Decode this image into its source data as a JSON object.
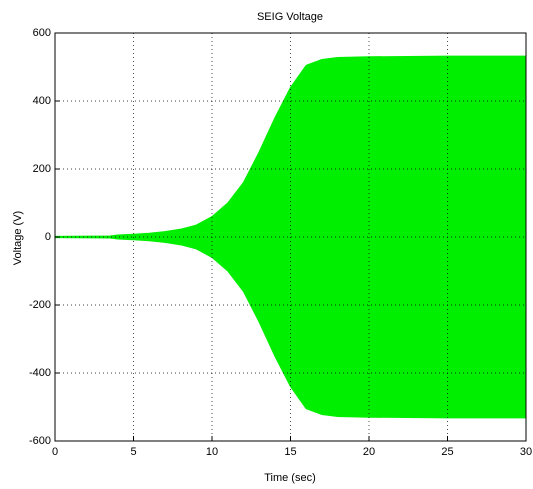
{
  "chart_data": {
    "type": "area",
    "title": "SEIG Voltage",
    "xlabel": "Time (sec)",
    "ylabel": "Voltage (V)",
    "x": [
      0,
      3.5,
      4,
      5,
      6,
      7,
      8,
      9,
      10,
      11,
      12,
      13,
      14,
      15,
      16,
      17,
      18,
      20,
      25,
      30
    ],
    "series": [
      {
        "color": "#00ee00",
        "values": [
          2,
          3,
          6,
          8,
          11,
          16,
          23,
          35,
          60,
          100,
          160,
          250,
          350,
          440,
          505,
          522,
          528,
          530,
          532,
          532
        ]
      },
      {
        "color": "#00ee00",
        "values": [
          -2,
          -3,
          -6,
          -8,
          -11,
          -16,
          -23,
          -35,
          -60,
          -100,
          -160,
          -250,
          -350,
          -440,
          -505,
          -522,
          -528,
          -530,
          -532,
          -532
        ]
      }
    ],
    "xlim": [
      0,
      30
    ],
    "xticks": [
      0,
      5,
      10,
      15,
      20,
      25,
      30
    ],
    "ylim": [
      -600,
      600
    ],
    "yticks": [
      -600,
      -400,
      -200,
      0,
      200,
      400,
      600
    ],
    "grid": true
  }
}
